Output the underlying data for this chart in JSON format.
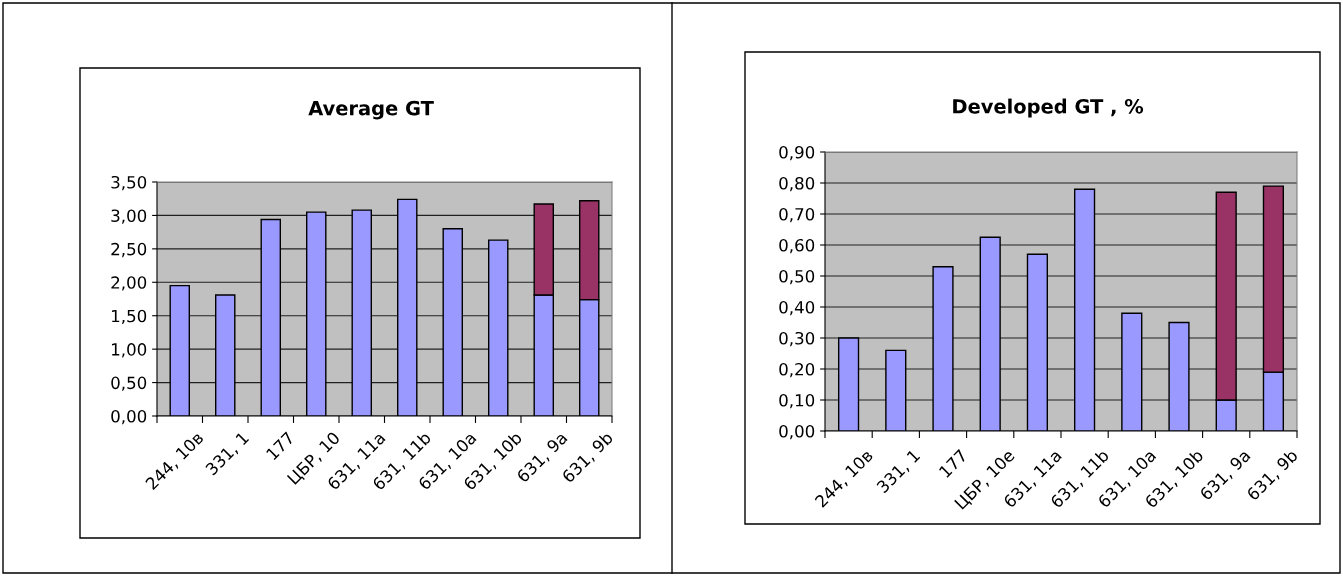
{
  "chart_data": [
    {
      "type": "bar",
      "title": "Average GT",
      "stacked": true,
      "categories": [
        "244, 10в",
        "331, 1",
        "177",
        "ЦБР, 10",
        "631, 11a",
        "631, 11b",
        "631, 10a",
        "631, 10b",
        "631, 9a",
        "631, 9b"
      ],
      "series": [
        {
          "color": "#9999ff",
          "values": [
            1.95,
            1.81,
            2.94,
            3.05,
            3.08,
            3.24,
            2.8,
            2.63,
            1.81,
            1.74
          ]
        },
        {
          "color": "#993366",
          "values": [
            null,
            null,
            null,
            null,
            null,
            null,
            null,
            null,
            1.36,
            1.48
          ]
        }
      ],
      "ylim": [
        0,
        3.5
      ],
      "yticks": [
        {
          "value": 0,
          "label": "0,00"
        },
        {
          "value": 0.5,
          "label": "0,50"
        },
        {
          "value": 1,
          "label": "1,00"
        },
        {
          "value": 1.5,
          "label": "1,50"
        },
        {
          "value": 2,
          "label": "2,00"
        },
        {
          "value": 2.5,
          "label": "2,50"
        },
        {
          "value": 3,
          "label": "3,00"
        },
        {
          "value": 3.5,
          "label": "3,50"
        }
      ],
      "grid": "y"
    },
    {
      "type": "bar",
      "title": "Developed GT , %",
      "stacked": true,
      "categories": [
        "244, 10в",
        "331, 1",
        "177",
        "ЦБР, 10е",
        "631, 11a",
        "631, 11b",
        "631, 10a",
        "631, 10b",
        "631, 9a",
        "631, 9b"
      ],
      "series": [
        {
          "color": "#9999ff",
          "values": [
            0.3,
            0.26,
            0.53,
            0.625,
            0.57,
            0.78,
            0.38,
            0.35,
            0.1,
            0.19
          ]
        },
        {
          "color": "#993366",
          "values": [
            null,
            null,
            null,
            null,
            null,
            null,
            null,
            null,
            0.67,
            0.6
          ]
        }
      ],
      "ylim": [
        0,
        0.9
      ],
      "yticks": [
        {
          "value": 0,
          "label": "0,00"
        },
        {
          "value": 0.1,
          "label": "0,10"
        },
        {
          "value": 0.2,
          "label": "0,20"
        },
        {
          "value": 0.3,
          "label": "0,30"
        },
        {
          "value": 0.4,
          "label": "0,40"
        },
        {
          "value": 0.5,
          "label": "0,50"
        },
        {
          "value": 0.6,
          "label": "0,60"
        },
        {
          "value": 0.7,
          "label": "0,70"
        },
        {
          "value": 0.8,
          "label": "0,80"
        },
        {
          "value": 0.9,
          "label": "0,90"
        }
      ],
      "grid": "y"
    }
  ]
}
